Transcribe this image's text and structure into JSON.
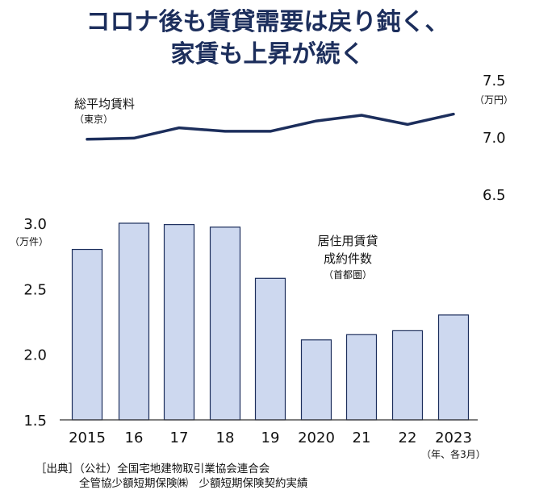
{
  "title": {
    "line1": "コロナ後も賃貸需要は戻り鈍く、",
    "line2": "家賃も上昇が続く"
  },
  "colors": {
    "title": "#1c2e5c",
    "line": "#1c2e5c",
    "bar_fill": "#cdd8ef",
    "bar_stroke": "#1c2e5c",
    "axis": "#333333"
  },
  "chart_data": [
    {
      "type": "line",
      "title": "総平均賃料",
      "subtitle": "（東京）",
      "unit": "（万円）",
      "ylim": [
        6.5,
        7.5
      ],
      "y_ticks": [
        "7.5",
        "7.0",
        "6.5"
      ],
      "y_axis_position": "right",
      "grid": false,
      "categories": [
        "2015",
        "16",
        "17",
        "18",
        "19",
        "2020",
        "21",
        "22",
        "2023"
      ],
      "values": [
        6.98,
        6.99,
        7.08,
        7.05,
        7.05,
        7.14,
        7.19,
        7.11,
        7.2
      ]
    },
    {
      "type": "bar",
      "title": "居住用賃貸",
      "title2": "成約件数",
      "subtitle": "（首都圏）",
      "unit": "（万件）",
      "ylim": [
        1.5,
        3.0
      ],
      "y_ticks": [
        "3.0",
        "2.5",
        "2.0",
        "1.5"
      ],
      "grid": false,
      "categories": [
        "2015",
        "16",
        "17",
        "18",
        "19",
        "2020",
        "21",
        "22",
        "2023"
      ],
      "values": [
        2.8,
        3.0,
        2.99,
        2.97,
        2.58,
        2.11,
        2.15,
        2.18,
        2.3
      ],
      "x_note": "（年、各3月）"
    }
  ],
  "source": {
    "line1": "［出典］（公社）全国宅地建物取引業協会連合会",
    "line2": "全管協少額短期保険㈱　少額短期保険契約実績"
  }
}
